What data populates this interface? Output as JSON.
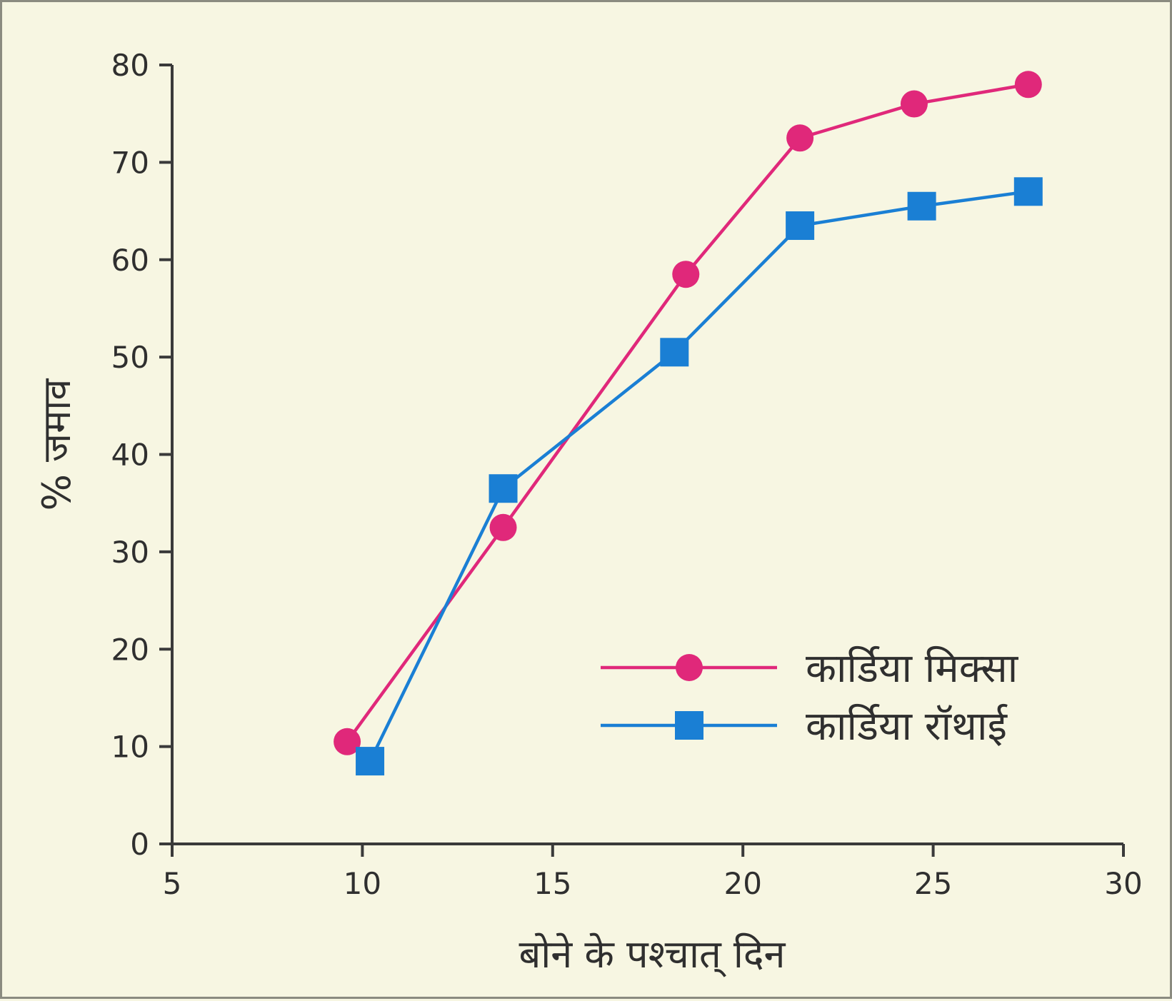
{
  "chart_data": {
    "type": "line",
    "xlabel": "बोने के पश्चात् दिन",
    "ylabel": "% जमाव",
    "xlim": [
      5,
      30
    ],
    "ylim": [
      0,
      80
    ],
    "x_ticks": [
      5,
      10,
      15,
      20,
      25,
      30
    ],
    "y_ticks": [
      0,
      10,
      20,
      30,
      40,
      50,
      60,
      70,
      80
    ],
    "grid": false,
    "legend_position": "bottom-right",
    "series": [
      {
        "name": "कार्डिया मिक्सा",
        "marker": "circle",
        "color": "#e0287a",
        "points": [
          {
            "x": 9.6,
            "y": 10.5
          },
          {
            "x": 13.7,
            "y": 32.5
          },
          {
            "x": 18.5,
            "y": 58.5
          },
          {
            "x": 21.5,
            "y": 72.5
          },
          {
            "x": 24.5,
            "y": 76.0
          },
          {
            "x": 27.5,
            "y": 78.0
          }
        ]
      },
      {
        "name": "कार्डिया रॉथाई",
        "marker": "square",
        "color": "#1a7fd4",
        "points": [
          {
            "x": 10.2,
            "y": 8.5
          },
          {
            "x": 13.7,
            "y": 36.5
          },
          {
            "x": 18.2,
            "y": 50.5
          },
          {
            "x": 21.5,
            "y": 63.5
          },
          {
            "x": 24.7,
            "y": 65.5
          },
          {
            "x": 27.5,
            "y": 67.0
          }
        ]
      }
    ]
  }
}
